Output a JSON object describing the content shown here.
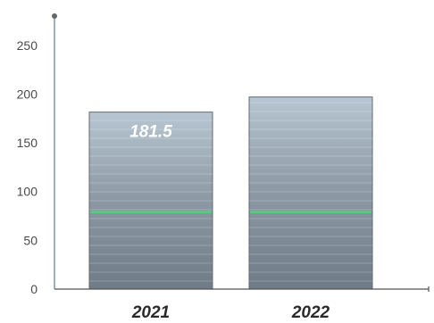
{
  "chart_data": {
    "type": "bar",
    "categories": [
      "2021",
      "2022"
    ],
    "values": [
      181.5,
      197
    ],
    "data_labels": [
      "181.5",
      ""
    ],
    "yticks": [
      0,
      50,
      100,
      150,
      200,
      250
    ],
    "ylim": [
      0,
      280
    ],
    "xlabel": "",
    "ylabel": "",
    "title": "",
    "grid": false,
    "colors": {
      "bar": "#8c98a4",
      "bar_top": "#b7c6d2",
      "bar_bottom": "#6f7b86",
      "stripe_green": "#3fe26a",
      "axis": "#7a9aa6"
    }
  }
}
